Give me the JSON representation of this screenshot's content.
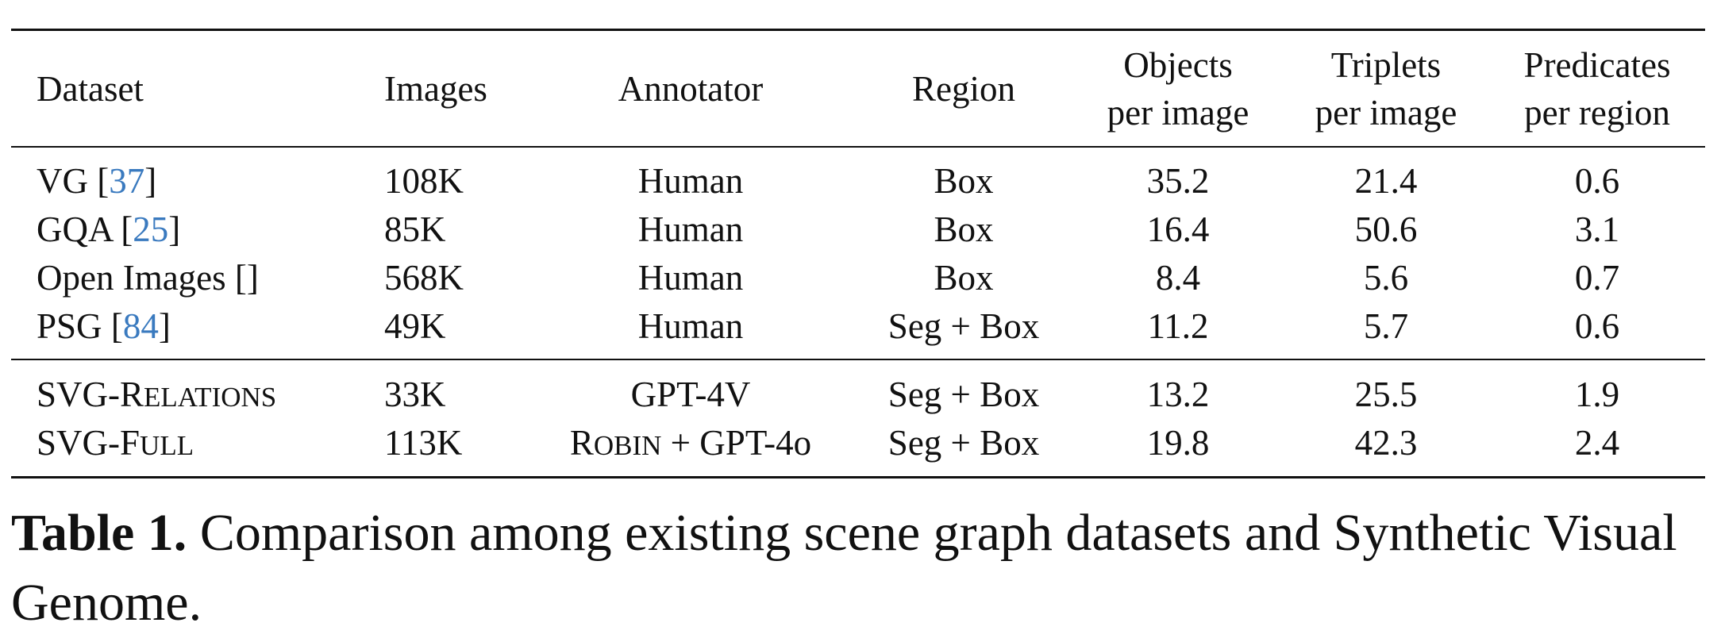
{
  "table": {
    "headers": {
      "dataset": "Dataset",
      "images": "Images",
      "annotator": "Annotator",
      "region": "Region",
      "objects_l1": "Objects",
      "objects_l2": "per image",
      "triplets_l1": "Triplets",
      "triplets_l2": "per image",
      "predicates_l1": "Predicates",
      "predicates_l2": "per region"
    },
    "rows": [
      {
        "name": "VG",
        "ref": "37",
        "images": "108K",
        "annotator": "Human",
        "region": "Box",
        "objects": "35.2",
        "triplets": "21.4",
        "predicates": "0.6"
      },
      {
        "name": "GQA",
        "ref": "25",
        "images": "85K",
        "annotator": "Human",
        "region": "Box",
        "objects": "16.4",
        "triplets": "50.6",
        "predicates": "3.1"
      },
      {
        "name": "Open Images",
        "ref": "",
        "images": "568K",
        "annotator": "Human",
        "region": "Box",
        "objects": "8.4",
        "triplets": "5.6",
        "predicates": "0.7"
      },
      {
        "name": "PSG",
        "ref": "84",
        "images": "49K",
        "annotator": "Human",
        "region": "Seg + Box",
        "objects": "11.2",
        "triplets": "5.7",
        "predicates": "0.6"
      }
    ],
    "svg_rows": [
      {
        "name_a": "SVG-R",
        "name_b": "ELATIONS",
        "images": "33K",
        "annotator": "GPT-4V",
        "region": "Seg + Box",
        "objects": "13.2",
        "triplets": "25.5",
        "predicates": "1.9"
      },
      {
        "name_a": "SVG-F",
        "name_b": "ULL",
        "images": "113K",
        "annotator_a": "R",
        "annotator_b": "OBIN",
        "annotator_c": " + GPT-4o",
        "region": "Seg + Box",
        "objects": "19.8",
        "triplets": "42.3",
        "predicates": "2.4"
      }
    ]
  },
  "caption": {
    "label": "Table 1.",
    "text": " Comparison among existing scene graph datasets and Synthetic Visual Genome."
  }
}
